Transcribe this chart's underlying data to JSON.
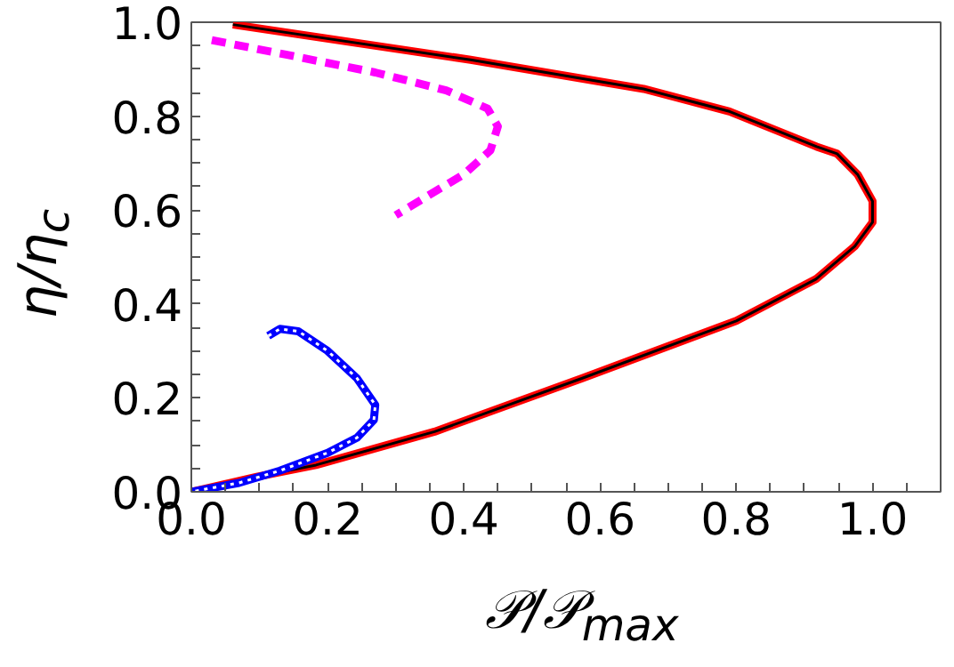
{
  "chart_data": {
    "type": "line",
    "xlabel": "𝒫/𝒫$_{max}$",
    "ylabel": "η/η$_{c}$",
    "xlim": [
      0,
      1.1
    ],
    "ylim": [
      0,
      1.0
    ],
    "xticks": [
      {
        "value": 0.0,
        "label": "0.0"
      },
      {
        "value": 0.05,
        "label": null
      },
      {
        "value": 0.1,
        "label": null
      },
      {
        "value": 0.15,
        "label": null
      },
      {
        "value": 0.2,
        "label": "0.2"
      },
      {
        "value": 0.25,
        "label": null
      },
      {
        "value": 0.3,
        "label": null
      },
      {
        "value": 0.35,
        "label": null
      },
      {
        "value": 0.4,
        "label": "0.4"
      },
      {
        "value": 0.45,
        "label": null
      },
      {
        "value": 0.5,
        "label": null
      },
      {
        "value": 0.55,
        "label": null
      },
      {
        "value": 0.6,
        "label": "0.6"
      },
      {
        "value": 0.65,
        "label": null
      },
      {
        "value": 0.7,
        "label": null
      },
      {
        "value": 0.75,
        "label": null
      },
      {
        "value": 0.8,
        "label": "0.8"
      },
      {
        "value": 0.85,
        "label": null
      },
      {
        "value": 0.9,
        "label": null
      },
      {
        "value": 0.95,
        "label": null
      },
      {
        "value": 1.0,
        "label": "1.0"
      },
      {
        "value": 1.05,
        "label": null
      }
    ],
    "yticks": [
      {
        "value": 0.0,
        "label": "0.0"
      },
      {
        "value": 0.05,
        "label": null
      },
      {
        "value": 0.1,
        "label": null
      },
      {
        "value": 0.15,
        "label": null
      },
      {
        "value": 0.2,
        "label": "0.2"
      },
      {
        "value": 0.25,
        "label": null
      },
      {
        "value": 0.3,
        "label": null
      },
      {
        "value": 0.35,
        "label": null
      },
      {
        "value": 0.4,
        "label": "0.4"
      },
      {
        "value": 0.45,
        "label": null
      },
      {
        "value": 0.5,
        "label": null
      },
      {
        "value": 0.55,
        "label": null
      },
      {
        "value": 0.6,
        "label": "0.6"
      },
      {
        "value": 0.65,
        "label": null
      },
      {
        "value": 0.7,
        "label": null
      },
      {
        "value": 0.75,
        "label": null
      },
      {
        "value": 0.8,
        "label": "0.8"
      },
      {
        "value": 0.85,
        "label": null
      },
      {
        "value": 0.9,
        "label": null
      },
      {
        "value": 0.95,
        "label": null
      },
      {
        "value": 1.0,
        "label": "1.0"
      }
    ],
    "grid": false,
    "marker": "none",
    "series": [
      {
        "color": "#ff0000",
        "line_style": "solid",
        "x": [
          0.061,
          0.41,
          0.664,
          0.79,
          0.918,
          0.948,
          0.978,
          1.0,
          1.0,
          0.974,
          0.917,
          0.8,
          0.574,
          0.357,
          0.183,
          0.096,
          0.0
        ],
        "values": [
          0.995,
          0.92,
          0.858,
          0.81,
          0.735,
          0.72,
          0.676,
          0.619,
          0.574,
          0.523,
          0.453,
          0.364,
          0.242,
          0.128,
          0.057,
          0.032,
          0.0
        ]
      },
      {
        "color": "#000000",
        "line_style": "solid",
        "x": [
          0.061,
          0.41,
          0.664,
          0.79,
          0.918,
          0.948,
          0.978,
          1.0,
          1.0,
          0.974,
          0.917,
          0.8,
          0.574,
          0.357,
          0.183,
          0.096,
          0.0
        ],
        "values": [
          0.995,
          0.92,
          0.858,
          0.81,
          0.735,
          0.72,
          0.676,
          0.619,
          0.574,
          0.523,
          0.453,
          0.364,
          0.242,
          0.128,
          0.057,
          0.032,
          0.0
        ]
      },
      {
        "color": "#ff00ff",
        "line_style": "dashed",
        "x": [
          0.03,
          0.139,
          0.27,
          0.374,
          0.435,
          0.45,
          0.439,
          0.4,
          0.348,
          0.3
        ],
        "values": [
          0.962,
          0.931,
          0.893,
          0.855,
          0.816,
          0.778,
          0.727,
          0.676,
          0.631,
          0.589
        ]
      },
      {
        "color": "#0000ff",
        "line_style": "solid",
        "x": [
          0.113,
          0.13,
          0.157,
          0.2,
          0.243,
          0.27,
          0.268,
          0.243,
          0.2,
          0.13,
          0.07,
          0.0
        ],
        "values": [
          0.332,
          0.347,
          0.342,
          0.3,
          0.242,
          0.185,
          0.153,
          0.115,
          0.083,
          0.045,
          0.019,
          0.0
        ]
      },
      {
        "color": "#ffffff",
        "line_style": "dotted",
        "x": [
          0.113,
          0.13,
          0.157,
          0.2,
          0.243,
          0.27,
          0.268,
          0.243,
          0.2,
          0.13,
          0.07,
          0.0
        ],
        "values": [
          0.332,
          0.347,
          0.342,
          0.3,
          0.242,
          0.185,
          0.153,
          0.115,
          0.083,
          0.045,
          0.019,
          0.0
        ]
      }
    ]
  }
}
